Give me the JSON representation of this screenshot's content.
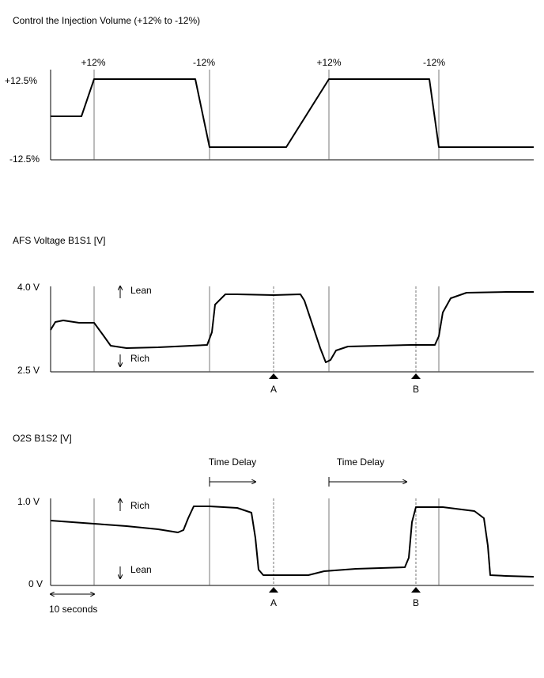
{
  "panels": [
    {
      "title": "Control the Injection Volume (+12% to -12%)",
      "step_labels": [
        "+12%",
        "-12%",
        "+12%",
        "-12%"
      ],
      "y_labels": [
        "+12.5%",
        "-12.5%"
      ]
    },
    {
      "title": "AFS Voltage B1S1 [V]",
      "y_labels": [
        "4.0 V",
        "2.5 V"
      ],
      "direction_labels": [
        "Lean",
        "Rich"
      ],
      "markers": [
        "A",
        "B"
      ]
    },
    {
      "title": "O2S B1S2 [V]",
      "delay_labels": [
        "Time Delay",
        "Time Delay"
      ],
      "y_labels": [
        "1.0 V",
        "0 V"
      ],
      "direction_labels": [
        "Rich",
        "Lean"
      ],
      "markers": [
        "A",
        "B"
      ],
      "scale_label": "10 seconds"
    }
  ]
}
